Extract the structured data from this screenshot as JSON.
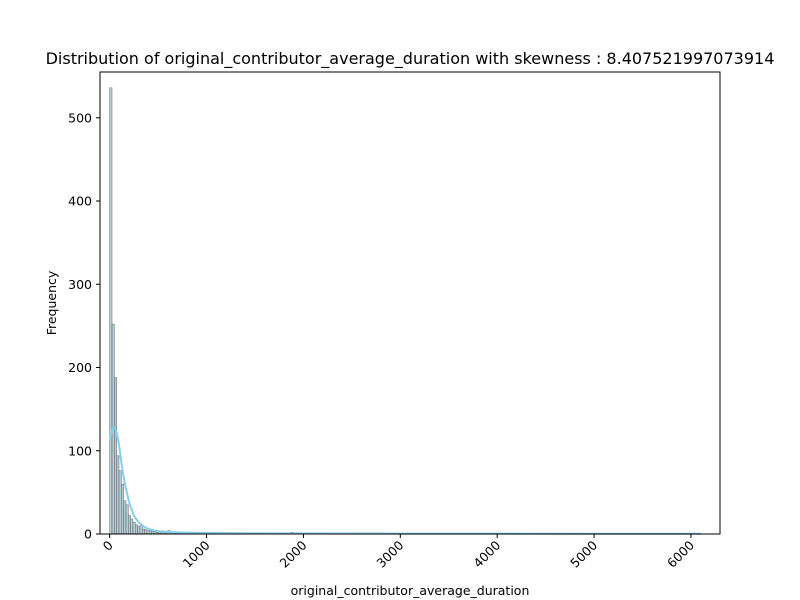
{
  "chart_data": {
    "type": "bar",
    "subtype": "histogram_with_kde",
    "title": "Distribution of original_contributor_average_duration with skewness : 8.407521997073914",
    "xlabel": "original_contributor_average_duration",
    "ylabel": "Frequency",
    "xlim": [
      -100,
      6300
    ],
    "ylim": [
      0,
      555
    ],
    "xticks": [
      0,
      1000,
      2000,
      3000,
      4000,
      5000,
      6000
    ],
    "xtick_labels": [
      "0",
      "1000",
      "2000",
      "3000",
      "4000",
      "5000",
      "6000"
    ],
    "xtick_rotation": 45,
    "yticks": [
      0,
      100,
      200,
      300,
      400,
      500
    ],
    "ytick_labels": [
      "0",
      "100",
      "200",
      "300",
      "400",
      "500"
    ],
    "grid": false,
    "legend": false,
    "colors": {
      "bar_fill": "#a9c6d0",
      "bar_edge": "#666666",
      "kde_line": "#87ceeb"
    },
    "bin_width": 24,
    "bins_start": [
      0,
      24,
      48,
      72,
      96,
      120,
      144,
      168,
      192,
      216,
      240,
      264,
      288,
      312,
      336,
      360,
      384,
      408,
      432,
      456,
      480,
      504,
      528,
      552,
      576,
      600,
      624,
      648,
      672,
      696,
      720,
      744,
      768,
      792,
      816,
      840,
      864,
      888,
      912,
      936,
      960,
      984,
      1008,
      1056,
      1104,
      1152,
      1200,
      1248,
      1296,
      1392,
      1440,
      1536,
      1872,
      2592,
      3312,
      4992,
      6072
    ],
    "values": [
      536,
      252,
      188,
      94,
      76,
      60,
      40,
      35,
      22,
      18,
      14,
      11,
      9,
      10,
      6,
      5,
      4,
      4,
      3,
      3,
      2,
      3,
      2,
      2,
      3,
      4,
      2,
      2,
      1,
      1,
      2,
      1,
      1,
      1,
      1,
      1,
      1,
      1,
      1,
      1,
      1,
      1,
      1,
      1,
      1,
      1,
      1,
      1,
      1,
      1,
      1,
      1,
      2,
      1,
      1,
      1,
      1
    ],
    "kde": {
      "x": [
        0,
        20,
        40,
        60,
        80,
        100,
        120,
        150,
        200,
        250,
        300,
        350,
        400,
        450,
        500,
        600,
        700,
        800,
        1000,
        1200,
        1500,
        2000,
        3000,
        4000,
        5000,
        6100
      ],
      "y": [
        112,
        122,
        128,
        126,
        118,
        104,
        86,
        64,
        38,
        22,
        14,
        9,
        6,
        4.5,
        3.5,
        2.5,
        2,
        1.6,
        1.3,
        1.1,
        0.9,
        0.7,
        0.5,
        0.4,
        0.3,
        0.3
      ]
    }
  }
}
